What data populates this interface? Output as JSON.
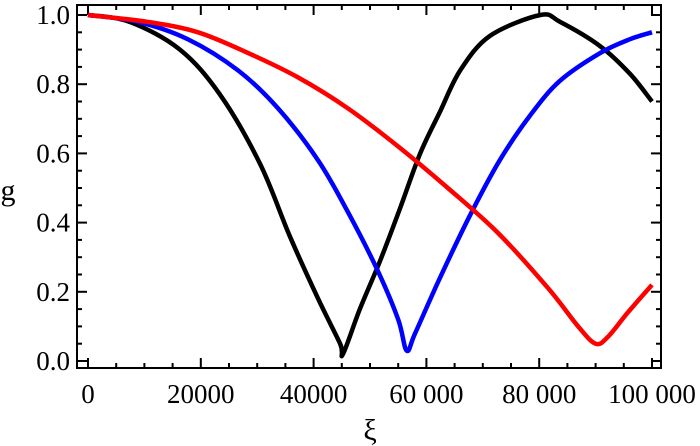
{
  "chart_data": {
    "type": "line",
    "title": "",
    "xlabel": "ξ",
    "ylabel": "g",
    "xlim": [
      0,
      102000
    ],
    "ylim": [
      0.0,
      1.0
    ],
    "grid": false,
    "legend": null,
    "x_ticks": [
      0,
      20000,
      40000,
      60000,
      80000,
      100000
    ],
    "x_tick_labels": [
      "0",
      "20000",
      "40000",
      "60 000",
      "80 000",
      "100 000"
    ],
    "y_ticks": [
      0.0,
      0.2,
      0.4,
      0.6,
      0.8,
      1.0
    ],
    "y_tick_labels": [
      "0.0",
      "0.2",
      "0.4",
      "0.6",
      "0.8",
      "1.0"
    ],
    "series": [
      {
        "name": "black",
        "color": "#000000",
        "x": [
          0,
          7400,
          16300,
          23400,
          30500,
          35800,
          40800,
          44700,
          45200,
          48200,
          51800,
          55300,
          58900,
          62400,
          66000,
          71300,
          80200,
          83700,
          90800,
          96100,
          100000
        ],
        "y": [
          1.0,
          0.98,
          0.9,
          0.77,
          0.57,
          0.36,
          0.18,
          0.05,
          0.02,
          0.15,
          0.29,
          0.44,
          0.6,
          0.72,
          0.84,
          0.94,
          1.0,
          0.98,
          0.91,
          0.83,
          0.75
        ]
      },
      {
        "name": "blue",
        "color": "#0000ff",
        "x": [
          0,
          8900,
          17700,
          26600,
          33700,
          40800,
          46100,
          51400,
          55000,
          56500,
          58000,
          62400,
          67700,
          73000,
          78400,
          83700,
          90800,
          96100,
          100000
        ],
        "y": [
          1.0,
          0.98,
          0.93,
          0.84,
          0.73,
          0.58,
          0.43,
          0.26,
          0.12,
          0.03,
          0.08,
          0.24,
          0.42,
          0.58,
          0.71,
          0.81,
          0.89,
          0.93,
          0.95
        ]
      },
      {
        "name": "red",
        "color": "#ff0000",
        "x": [
          0,
          10600,
          19500,
          28400,
          37200,
          46100,
          55000,
          63800,
          72700,
          81600,
          86900,
          90000,
          92200,
          95700,
          100000
        ],
        "y": [
          1.0,
          0.98,
          0.95,
          0.89,
          0.82,
          0.73,
          0.62,
          0.5,
          0.37,
          0.21,
          0.1,
          0.05,
          0.07,
          0.14,
          0.22
        ]
      }
    ]
  }
}
